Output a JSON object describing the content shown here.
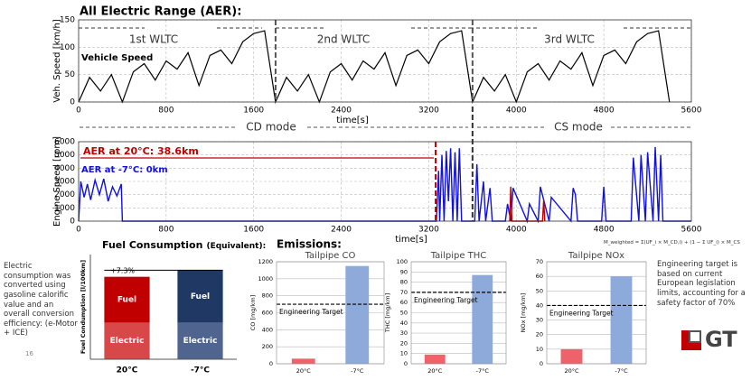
{
  "chart_data": [
    {
      "type": "line",
      "title": "All Electric Range (AER):",
      "y_label": "Veh. Speed [km/h]",
      "x_label": "time[s]",
      "xlim": [
        0,
        5600
      ],
      "xticks": [
        0,
        800,
        1600,
        2400,
        3200,
        4000,
        4800,
        5600
      ],
      "ylim": [
        0,
        150
      ],
      "yticks": [
        0,
        50,
        100,
        150
      ],
      "grid": true,
      "x": [
        0,
        100,
        200,
        300,
        400,
        500,
        600,
        700,
        800,
        900,
        1000,
        1100,
        1200,
        1300,
        1400,
        1500,
        1600,
        1700,
        1800,
        1900,
        2000,
        2100,
        2200,
        2300,
        2400,
        2500,
        2600,
        2700,
        2800,
        2900,
        3000,
        3100,
        3200,
        3300,
        3400,
        3500,
        3600,
        3700,
        3800,
        3900,
        4000,
        4100,
        4200,
        4300,
        4400,
        4500,
        4600,
        4700,
        4800,
        4900,
        5000,
        5100,
        5200,
        5300,
        5400
      ],
      "series": [
        {
          "name": "Vehicle Speed",
          "color": "#000000",
          "values": [
            0,
            45,
            20,
            50,
            0,
            55,
            70,
            40,
            75,
            60,
            90,
            30,
            85,
            95,
            70,
            110,
            125,
            130,
            0,
            45,
            20,
            50,
            0,
            55,
            70,
            40,
            75,
            60,
            90,
            30,
            85,
            95,
            70,
            110,
            125,
            130,
            0,
            45,
            20,
            50,
            0,
            55,
            70,
            40,
            75,
            60,
            90,
            30,
            85,
            95,
            70,
            110,
            125,
            130,
            0
          ]
        }
      ],
      "annotations": [
        {
          "text": "1st WLTC"
        },
        {
          "text": "2nd WLTC"
        },
        {
          "text": "3rd WLTC"
        }
      ],
      "vlines": [
        {
          "x": 1800,
          "color": "#555555"
        },
        {
          "x": 3600,
          "color": "#555555"
        }
      ]
    },
    {
      "type": "line",
      "y_label": "Engine Speed [rpm]",
      "x_label": "time[s]",
      "xlim": [
        0,
        5600
      ],
      "xticks": [
        0,
        800,
        1600,
        2400,
        3200,
        4000,
        4800,
        5600
      ],
      "ylim": [
        0,
        6000
      ],
      "yticks": [
        0,
        1000,
        2000,
        3000,
        4000,
        5000,
        6000
      ],
      "grid": true,
      "series": [
        {
          "color": "#1010e0",
          "x": [
            0,
            20,
            50,
            80,
            110,
            150,
            190,
            230,
            270,
            310,
            350,
            390,
            400,
            3270,
            3290,
            3300,
            3320,
            3340,
            3360,
            3380,
            3400,
            3420,
            3440,
            3460,
            3480,
            3500,
            3620,
            3640,
            3660,
            3700,
            3720,
            3760,
            3780,
            3900,
            3920,
            3950,
            3970,
            4100,
            4120,
            4200,
            4220,
            4300,
            4320,
            4500,
            4520,
            4540,
            4560,
            4780,
            4800,
            4820,
            5050,
            5070,
            5120,
            5140,
            5180,
            5200,
            5250,
            5270,
            5300,
            5320,
            5340,
            5600
          ],
          "values": [
            0,
            3000,
            1800,
            2800,
            1600,
            3100,
            2000,
            3200,
            1500,
            2600,
            1900,
            2800,
            0,
            0,
            3800,
            0,
            5000,
            0,
            5300,
            1500,
            5500,
            0,
            5200,
            0,
            5500,
            0,
            0,
            4300,
            0,
            3000,
            0,
            2500,
            0,
            0,
            1300,
            0,
            2500,
            0,
            1300,
            0,
            2600,
            0,
            1800,
            0,
            2500,
            2000,
            0,
            0,
            2600,
            0,
            0,
            4800,
            0,
            5000,
            0,
            5200,
            0,
            5600,
            0,
            5000,
            0,
            0
          ]
        },
        {
          "color": "#c00000",
          "x": [
            3940,
            3950,
            3960,
            4240,
            4250,
            4260
          ],
          "values": [
            0,
            2600,
            0,
            0,
            1600,
            0
          ]
        }
      ],
      "annotations": [
        {
          "text": "AER at 20°C: 38.6km",
          "color": "#c00000"
        },
        {
          "text": "AER at -7°C: 0km",
          "color": "#1010e0"
        }
      ],
      "vlines": [
        {
          "x": 3263,
          "color": "#c00000"
        },
        {
          "x": 3600,
          "color": "#333333"
        }
      ]
    },
    {
      "type": "stacked_bar",
      "title": "Fuel Consumption",
      "subtitle": "(Equivalent):",
      "y_label": "Fuel Condumption [l/100km]",
      "categories": [
        "20°C",
        "-7°C"
      ],
      "ylim": [
        0,
        8
      ],
      "series": [
        {
          "name": "Electric",
          "color": [
            "#d94848",
            "#4f6590"
          ],
          "values": [
            2.8,
            2.8
          ]
        },
        {
          "name": "Fuel",
          "color": [
            "#c00000",
            "#1f3864"
          ],
          "values": [
            3.5,
            4.0
          ]
        }
      ],
      "annotations": [
        {
          "text": "+7.3%"
        }
      ]
    },
    {
      "type": "bar",
      "title": "Tailpipe CO",
      "y_label": "CO [mg/km]",
      "categories": [
        "20°C",
        "-7°C"
      ],
      "values": [
        60,
        1150
      ],
      "colors": [
        "#f0626a",
        "#8eaadb"
      ],
      "ylim": [
        0,
        1200
      ],
      "yticks": [
        0,
        200,
        400,
        600,
        800,
        1000,
        1200
      ],
      "grid": true,
      "target": 700,
      "target_label": "Engineering Target"
    },
    {
      "type": "bar",
      "title": "Tailpipe THC",
      "y_label": "THC [mg/km]",
      "categories": [
        "20°C",
        "-7°C"
      ],
      "values": [
        9,
        87
      ],
      "colors": [
        "#f0626a",
        "#8eaadb"
      ],
      "ylim": [
        0,
        100
      ],
      "yticks": [
        0,
        10,
        20,
        30,
        40,
        50,
        60,
        70,
        80,
        90,
        100
      ],
      "grid": true,
      "target": 70,
      "target_label": "Engineering Target"
    },
    {
      "type": "bar",
      "title": "Tailpipe NOx",
      "y_label": "NOx [mg/km]",
      "categories": [
        "20°C",
        "-7°C"
      ],
      "values": [
        10,
        60
      ],
      "colors": [
        "#f0626a",
        "#8eaadb"
      ],
      "ylim": [
        0,
        70
      ],
      "yticks": [
        0,
        10,
        20,
        30,
        40,
        50,
        60,
        70
      ],
      "grid": true,
      "target": 40,
      "target_label": "Engineering Target"
    }
  ],
  "slide": {
    "cd_mode": "CD mode",
    "cs_mode": "CS mode",
    "emissions_heading": "Emissions:",
    "left_note": "Electric consumption was converted using gasoline calorific value and an overall conversion efficiency: (e-Motor + ICE)",
    "page_number": "16",
    "formula": "M_weighted = Σ(UF_i × M_CD,i) + (1 − Σ UF_i) × M_CS",
    "right_note": "Engineering target is based on current European legislation limits, accounting for a safety factor of 70%",
    "logo": "GT"
  }
}
